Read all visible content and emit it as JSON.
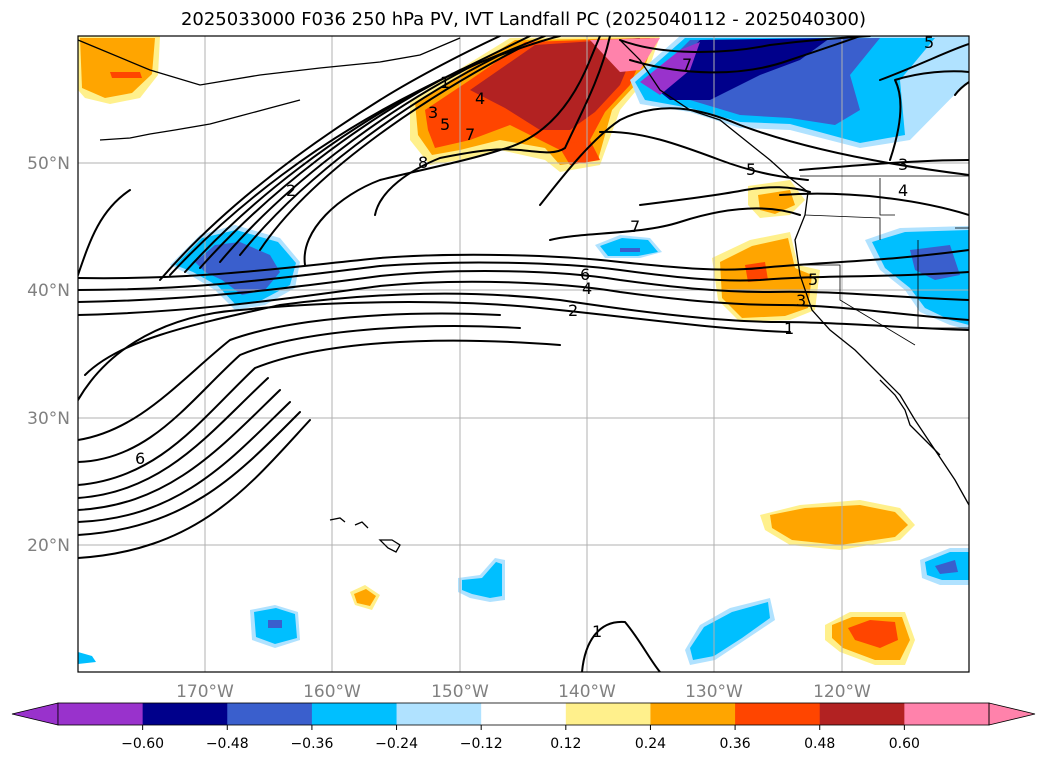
{
  "title": "2025033000 F036 250 hPa PV, IVT Landfall PC (2025040112 - 2025040300)",
  "map": {
    "lat_labels": [
      {
        "text": "50°N",
        "lat": 50
      },
      {
        "text": "40°N",
        "lat": 40
      },
      {
        "text": "30°N",
        "lat": 30
      },
      {
        "text": "20°N",
        "lat": 20
      }
    ],
    "lon_labels": [
      {
        "text": "170°W",
        "lon": -170
      },
      {
        "text": "160°W",
        "lon": -160
      },
      {
        "text": "150°W",
        "lon": -150
      },
      {
        "text": "140°W",
        "lon": -140
      },
      {
        "text": "130°W",
        "lon": -130
      },
      {
        "text": "120°W",
        "lon": -120
      }
    ],
    "contour_labels": [
      "1",
      "2",
      "3",
      "4",
      "5",
      "6",
      "7",
      "8"
    ]
  },
  "colorbar": {
    "ticks": [
      "−0.60",
      "−0.48",
      "−0.36",
      "−0.24",
      "−0.12",
      "0.12",
      "0.24",
      "0.36",
      "0.48",
      "0.60"
    ],
    "colors": {
      "under": "#9932cc",
      "bins": [
        "#9932cc",
        "#00008b",
        "#3a5fcd",
        "#00bfff",
        "#b0e2ff",
        "#ffffff",
        "#fff08c",
        "#ffa500",
        "#ff4500",
        "#b22222",
        "#ff82ab"
      ],
      "over": "#ff82ab"
    }
  }
}
